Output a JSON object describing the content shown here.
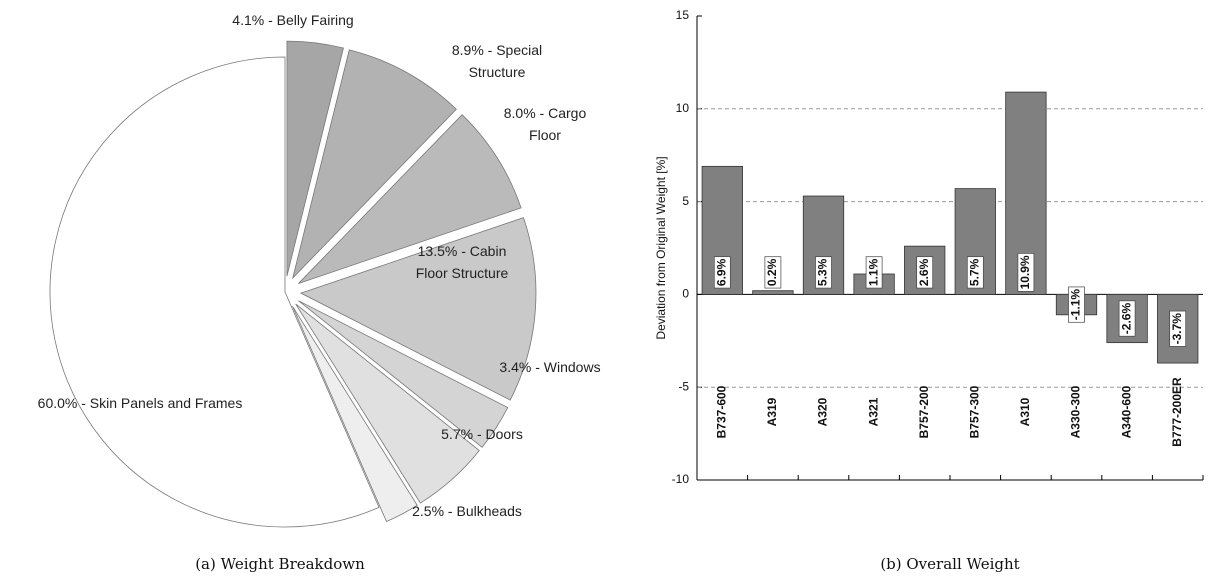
{
  "chart_data": [
    {
      "type": "pie",
      "caption": "(a) Weight Breakdown",
      "values": [
        4.1,
        8.9,
        8.0,
        13.5,
        3.4,
        5.7,
        2.5,
        60.0
      ],
      "labels": [
        "4.1% - Belly Fairing",
        "8.9% - Special Structure",
        "8.0% - Cargo Floor",
        "13.5% - Cabin Floor Structure",
        "3.4% - Windows",
        "5.7% - Doors",
        "2.5% - Bulkheads",
        "60.0% - Skin Panels and Frames"
      ],
      "colors": [
        "#a6a6a6",
        "#b2b2b2",
        "#bababa",
        "#c9c9c9",
        "#d4d4d4",
        "#e0e0e0",
        "#eeeeee",
        "#ffffff"
      ]
    },
    {
      "type": "bar",
      "caption": "(b) Overall Weight",
      "ylabel": "Deviation from Original Weight [%]",
      "categories": [
        "B737-600",
        "A319",
        "A320",
        "A321",
        "B757-200",
        "B757-300",
        "A310",
        "A330-300",
        "A340-600",
        "B777-200ER"
      ],
      "values": [
        6.9,
        0.2,
        5.3,
        1.1,
        2.6,
        5.7,
        10.9,
        -1.1,
        -2.6,
        -3.7
      ],
      "value_labels": [
        "6.9%",
        "0.2%",
        "5.3%",
        "1.1%",
        "2.6%",
        "5.7%",
        "10.9%",
        "-1.1%",
        "-2.6%",
        "-3.7%"
      ],
      "color": "#808080",
      "ylim": [
        -10,
        15
      ],
      "yticks": [
        -10,
        -5,
        0,
        5,
        10,
        15
      ],
      "grid": true
    }
  ]
}
